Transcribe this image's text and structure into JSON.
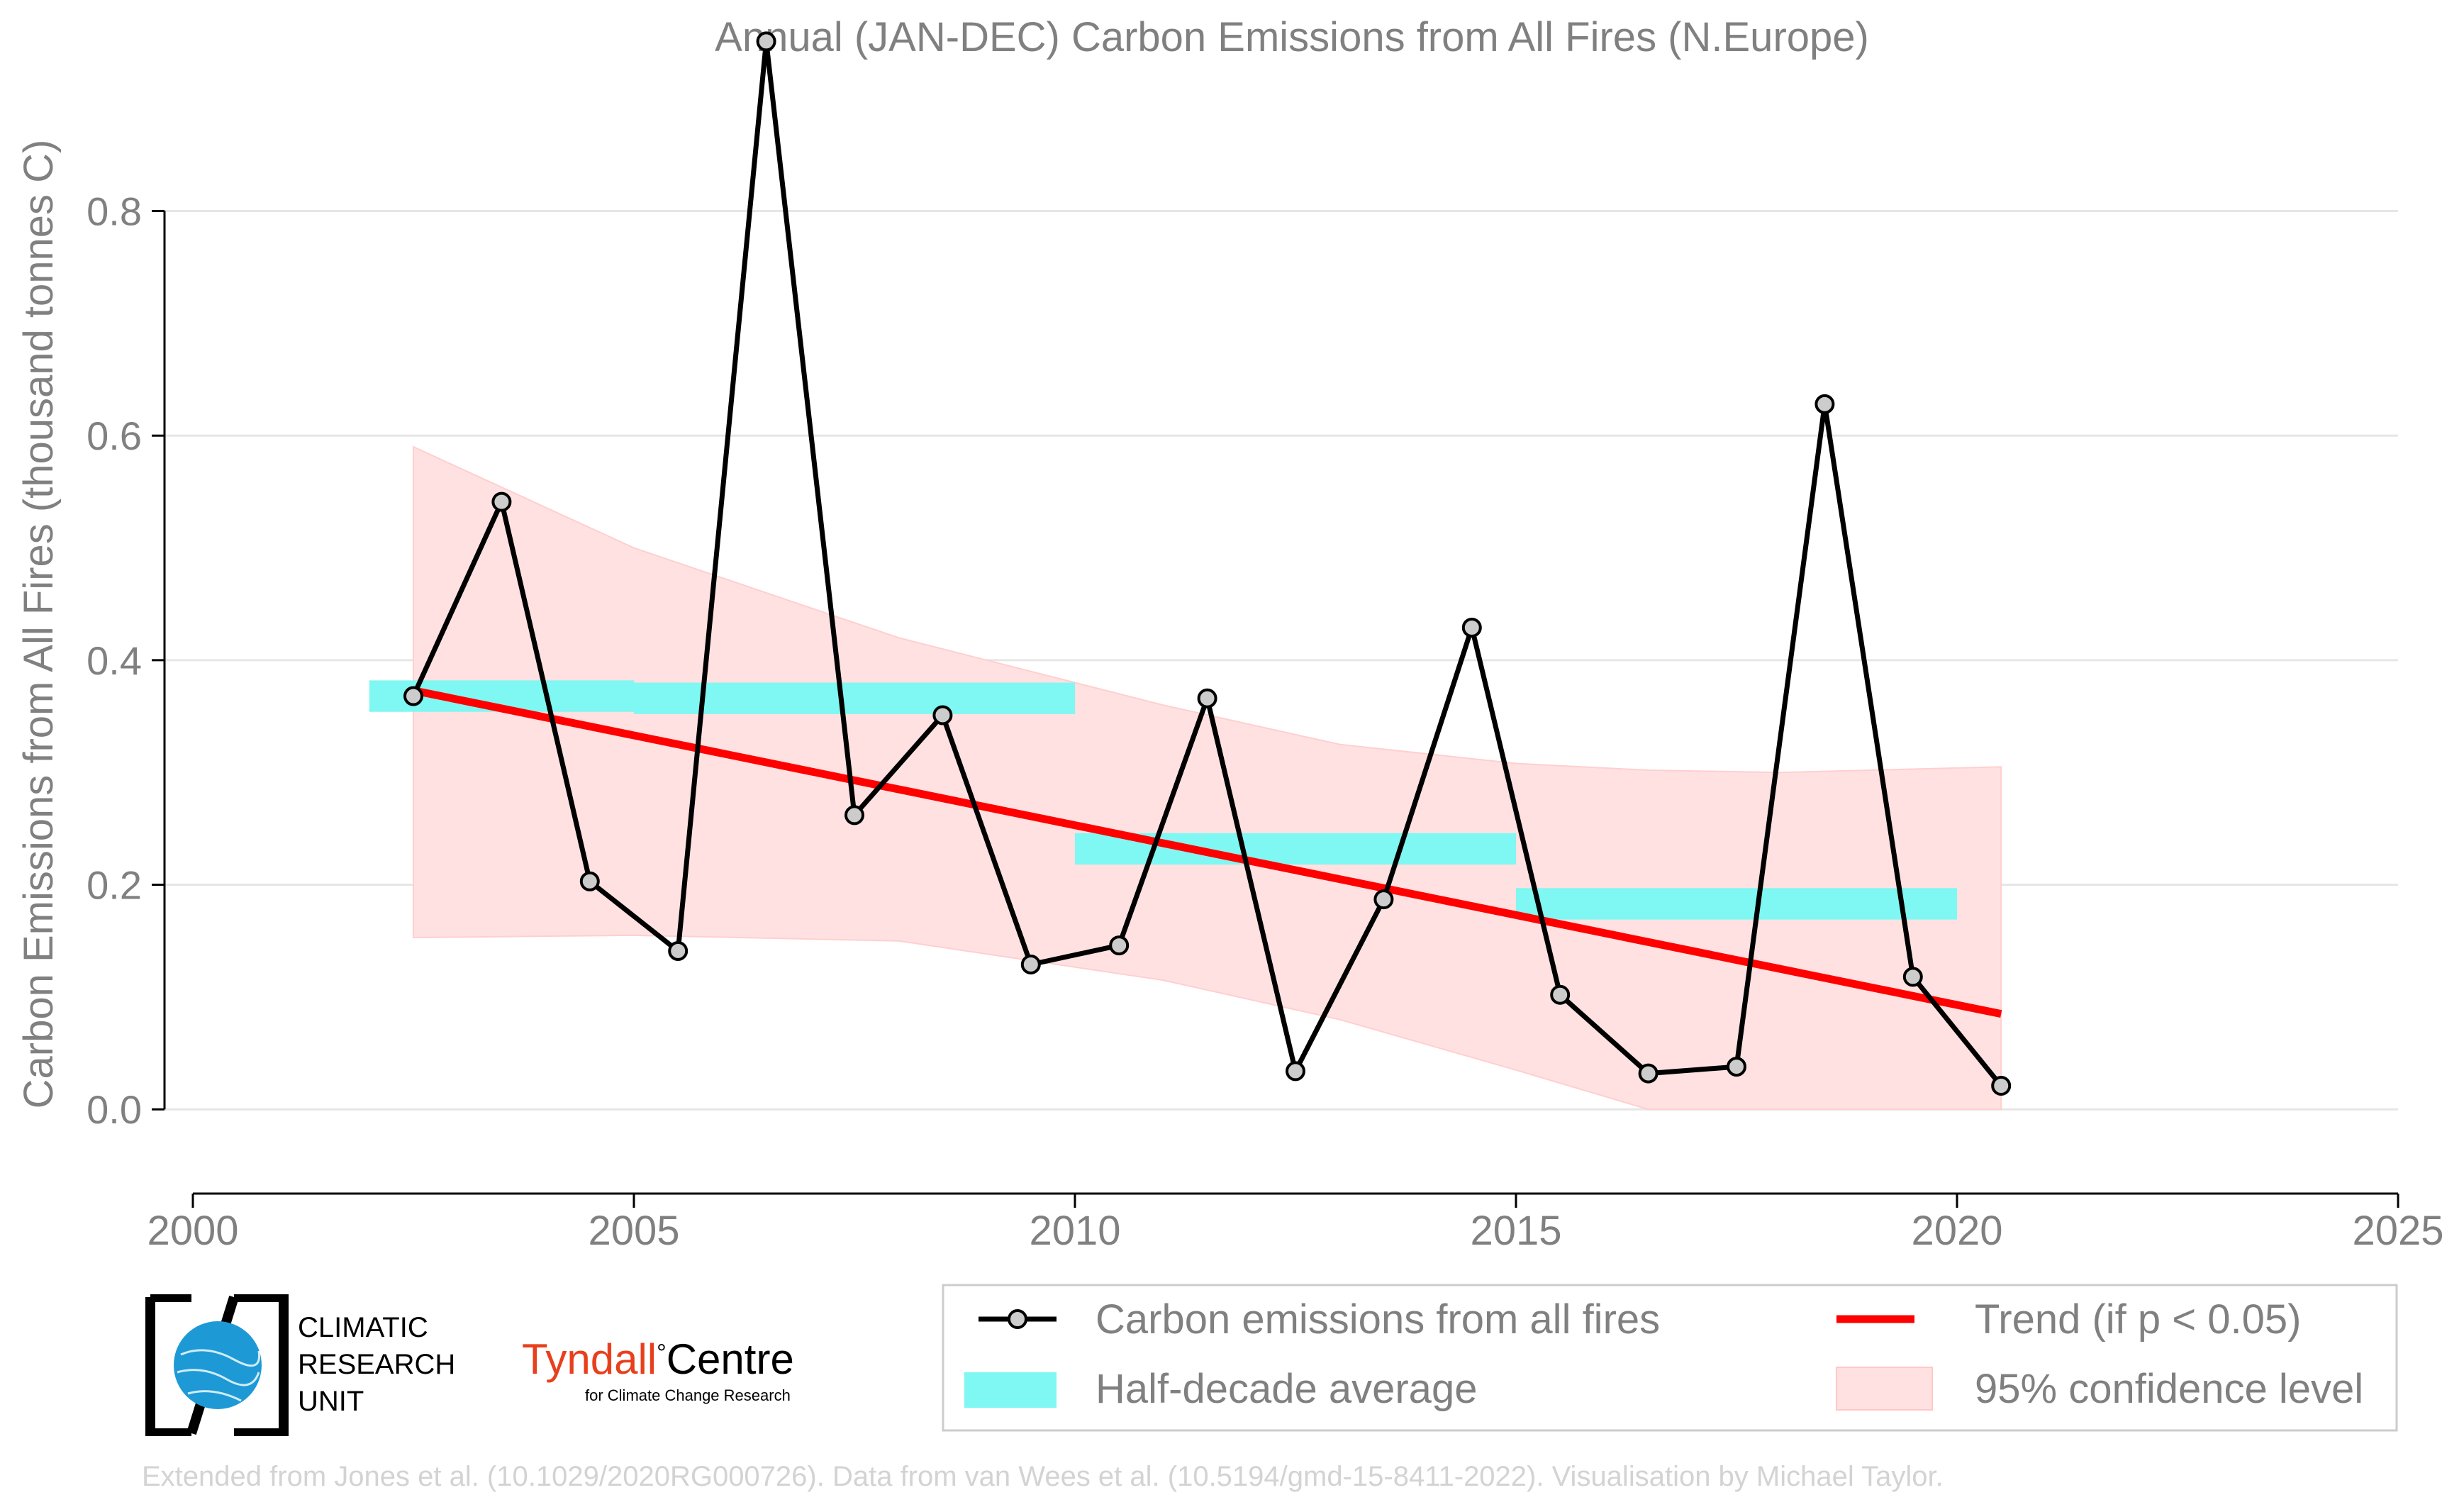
{
  "chart_data": {
    "type": "line",
    "title": "Annual (JAN-DEC) Carbon Emissions from All Fires (N.Europe)",
    "xlabel": "",
    "ylabel": "Carbon Emissions from All Fires (thousand tonnes C)",
    "xlim": [
      2000,
      2025
    ],
    "ylim": [
      -0.075,
      0.95
    ],
    "x_ticks": [
      2000,
      2005,
      2010,
      2015,
      2020,
      2025
    ],
    "x_tick_labels": [
      "2000",
      "2005",
      "2010",
      "2015",
      "2020",
      "2025"
    ],
    "y_ticks": [
      0.0,
      0.2,
      0.4,
      0.6,
      0.8
    ],
    "y_tick_labels": [
      "0.0",
      "0.2",
      "0.4",
      "0.6",
      "0.8"
    ],
    "grid": "horizontal",
    "series": [
      {
        "name": "Carbon emissions from all fires",
        "x": [
          2002.5,
          2003.5,
          2004.5,
          2005.5,
          2006.5,
          2007.5,
          2008.5,
          2009.5,
          2010.5,
          2011.5,
          2012.5,
          2013.5,
          2014.5,
          2015.5,
          2016.5,
          2017.5,
          2018.5,
          2019.5,
          2020.5
        ],
        "values": [
          0.368,
          0.541,
          0.203,
          0.141,
          0.951,
          0.262,
          0.351,
          0.129,
          0.146,
          0.366,
          0.034,
          0.187,
          0.429,
          0.102,
          0.032,
          0.038,
          0.628,
          0.118,
          0.021
        ],
        "color": "#000000"
      },
      {
        "name": "Half-decade average",
        "segments": [
          {
            "x0": 2002,
            "x1": 2005,
            "value": 0.368
          },
          {
            "x0": 2005,
            "x1": 2010,
            "value": 0.366
          },
          {
            "x0": 2010,
            "x1": 2015,
            "value": 0.232
          },
          {
            "x0": 2015,
            "x1": 2020,
            "value": 0.183
          }
        ],
        "color": "#7ff7f2"
      },
      {
        "name": "Trend (if p < 0.05)",
        "x": [
          2002.5,
          2020.5
        ],
        "values": [
          0.373,
          0.085
        ],
        "color": "#ff0000"
      },
      {
        "name": "95% confidence level",
        "x": [
          2002.5,
          2005,
          2008,
          2011,
          2013,
          2015,
          2016.5,
          2018,
          2020.5
        ],
        "upper": [
          0.59,
          0.5,
          0.42,
          0.36,
          0.325,
          0.308,
          0.302,
          0.3,
          0.305
        ],
        "lower": [
          0.153,
          0.155,
          0.15,
          0.115,
          0.08,
          0.035,
          0.0,
          0.0,
          0.0
        ],
        "color": "#ffe1e1"
      }
    ],
    "legend": {
      "position": "bottom-right",
      "entries": [
        "Carbon emissions from all fires",
        "Trend (if p < 0.05)",
        "Half-decade average",
        "95% confidence level"
      ]
    }
  },
  "logos": {
    "cru_line1": "CLIMATIC",
    "cru_line2": "RESEARCH",
    "cru_line3": "UNIT",
    "tyndall_name": "Tyndall",
    "tyndall_degree": "°",
    "tyndall_centre": "Centre",
    "tyndall_sub": "for Climate Change Research"
  },
  "footer": "Extended from Jones et al. (10.1029/2020RG000726). Data from van Wees et al. (10.5194/gmd-15-8411-2022). Visualisation by Michael Taylor.",
  "colors": {
    "text_grey": "#808080",
    "grid": "#e6e6e6",
    "tyndall_red": "#e8401c",
    "cru_blue": "#1d9ad6"
  }
}
